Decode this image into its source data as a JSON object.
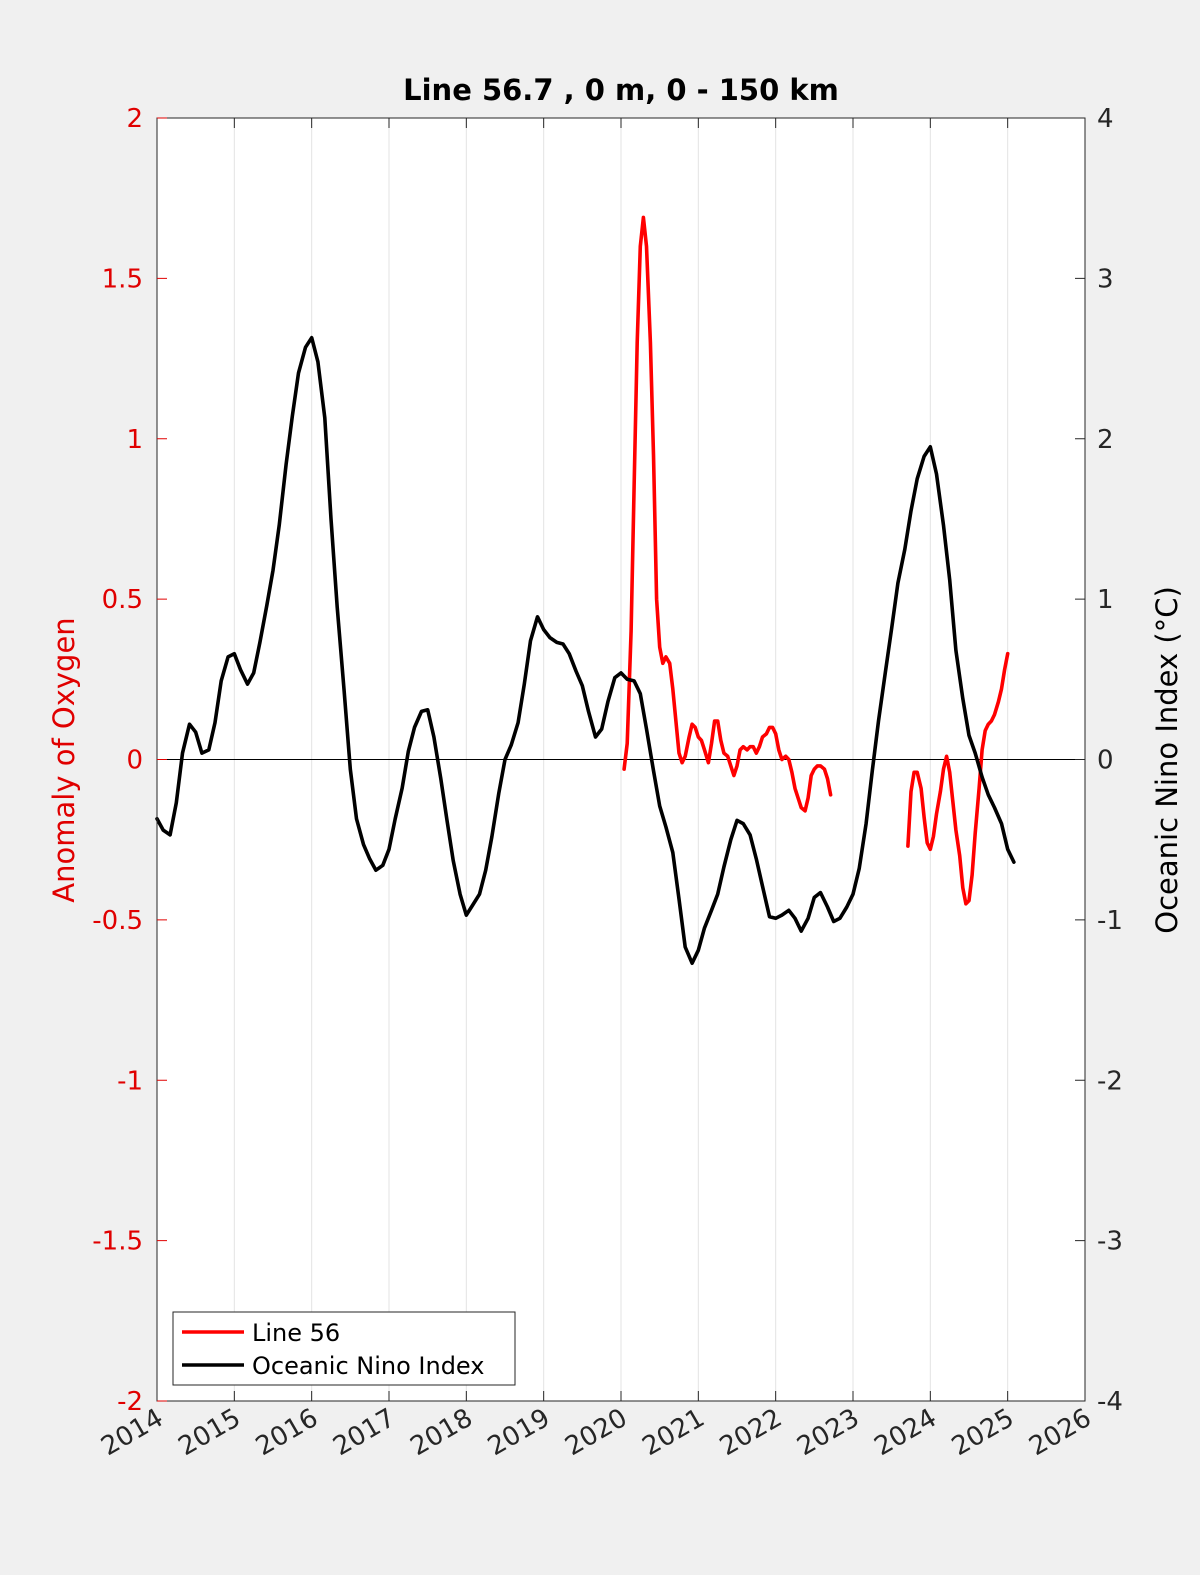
{
  "chart_data": {
    "type": "line",
    "title": "Line 56.7 , 0 m, 0 - 150 km",
    "ylabel_left": "Anomaly of Oxygen",
    "ylabel_right": "Oceanic Nino Index (°C)",
    "xlim": [
      2014,
      2026
    ],
    "ylim_left": [
      -2,
      2
    ],
    "ylim_right": [
      -4,
      4
    ],
    "xticks": [
      "2014",
      "2015",
      "2016",
      "2017",
      "2018",
      "2019",
      "2020",
      "2021",
      "2022",
      "2023",
      "2024",
      "2025",
      "2026"
    ],
    "yticks_left": [
      "-2",
      "-1.5",
      "-1",
      "-0.5",
      "0",
      "0.5",
      "1",
      "1.5",
      "2"
    ],
    "yticks_right": [
      "-4",
      "-3",
      "-2",
      "-1",
      "0",
      "1",
      "2",
      "3",
      "4"
    ],
    "grid": "vertical",
    "legend_position": "bottom-left",
    "colors": {
      "left_axis": "#e00000",
      "right_axis": "#000000",
      "background": "#f0f0f0",
      "plot": "#ffffff"
    },
    "series": [
      {
        "name": "Line 56",
        "axis": "left",
        "color": "#ff0000",
        "segments": [
          [
            [
              2020.04,
              -0.03
            ],
            [
              2020.08,
              0.05
            ],
            [
              2020.13,
              0.4
            ],
            [
              2020.17,
              0.85
            ],
            [
              2020.21,
              1.3
            ],
            [
              2020.25,
              1.6
            ],
            [
              2020.29,
              1.69
            ],
            [
              2020.33,
              1.6
            ],
            [
              2020.38,
              1.3
            ],
            [
              2020.42,
              0.95
            ],
            [
              2020.46,
              0.5
            ],
            [
              2020.5,
              0.35
            ],
            [
              2020.54,
              0.3
            ],
            [
              2020.58,
              0.32
            ],
            [
              2020.63,
              0.3
            ],
            [
              2020.67,
              0.22
            ],
            [
              2020.71,
              0.12
            ],
            [
              2020.75,
              0.02
            ],
            [
              2020.79,
              -0.01
            ],
            [
              2020.83,
              0.01
            ],
            [
              2020.88,
              0.07
            ],
            [
              2020.92,
              0.11
            ],
            [
              2020.96,
              0.1
            ],
            [
              2021.0,
              0.07
            ],
            [
              2021.04,
              0.06
            ],
            [
              2021.08,
              0.03
            ],
            [
              2021.13,
              -0.01
            ],
            [
              2021.17,
              0.05
            ],
            [
              2021.21,
              0.12
            ],
            [
              2021.25,
              0.12
            ],
            [
              2021.29,
              0.06
            ],
            [
              2021.33,
              0.02
            ],
            [
              2021.38,
              0.01
            ],
            [
              2021.42,
              -0.02
            ],
            [
              2021.46,
              -0.05
            ],
            [
              2021.5,
              -0.02
            ],
            [
              2021.54,
              0.03
            ],
            [
              2021.58,
              0.04
            ],
            [
              2021.63,
              0.03
            ],
            [
              2021.67,
              0.04
            ],
            [
              2021.71,
              0.04
            ],
            [
              2021.75,
              0.02
            ],
            [
              2021.79,
              0.04
            ],
            [
              2021.83,
              0.07
            ],
            [
              2021.88,
              0.08
            ],
            [
              2021.92,
              0.1
            ],
            [
              2021.96,
              0.1
            ],
            [
              2022.0,
              0.08
            ],
            [
              2022.04,
              0.03
            ],
            [
              2022.08,
              0.0
            ],
            [
              2022.13,
              0.01
            ],
            [
              2022.17,
              0.0
            ],
            [
              2022.21,
              -0.04
            ],
            [
              2022.25,
              -0.09
            ],
            [
              2022.29,
              -0.12
            ],
            [
              2022.33,
              -0.15
            ],
            [
              2022.38,
              -0.16
            ],
            [
              2022.42,
              -0.12
            ],
            [
              2022.46,
              -0.05
            ],
            [
              2022.5,
              -0.03
            ],
            [
              2022.54,
              -0.02
            ],
            [
              2022.58,
              -0.02
            ],
            [
              2022.63,
              -0.03
            ],
            [
              2022.67,
              -0.06
            ],
            [
              2022.71,
              -0.11
            ]
          ],
          [
            [
              2023.71,
              -0.27
            ],
            [
              2023.75,
              -0.1
            ],
            [
              2023.79,
              -0.04
            ],
            [
              2023.83,
              -0.04
            ],
            [
              2023.88,
              -0.09
            ],
            [
              2023.92,
              -0.18
            ],
            [
              2023.96,
              -0.26
            ],
            [
              2024.0,
              -0.28
            ],
            [
              2024.04,
              -0.24
            ],
            [
              2024.08,
              -0.17
            ],
            [
              2024.13,
              -0.1
            ],
            [
              2024.17,
              -0.03
            ],
            [
              2024.21,
              0.01
            ],
            [
              2024.25,
              -0.04
            ],
            [
              2024.29,
              -0.13
            ],
            [
              2024.33,
              -0.22
            ],
            [
              2024.38,
              -0.3
            ],
            [
              2024.42,
              -0.4
            ],
            [
              2024.46,
              -0.45
            ],
            [
              2024.5,
              -0.44
            ],
            [
              2024.54,
              -0.36
            ],
            [
              2024.58,
              -0.23
            ],
            [
              2024.63,
              -0.09
            ],
            [
              2024.67,
              0.03
            ],
            [
              2024.71,
              0.09
            ],
            [
              2024.75,
              0.11
            ],
            [
              2024.79,
              0.12
            ],
            [
              2024.83,
              0.14
            ],
            [
              2024.88,
              0.18
            ],
            [
              2024.92,
              0.22
            ],
            [
              2024.96,
              0.28
            ],
            [
              2025.0,
              0.33
            ]
          ]
        ]
      },
      {
        "name": "Oceanic Nino Index",
        "axis": "right",
        "color": "#000000",
        "segments": [
          [
            [
              2014.0,
              -0.37
            ],
            [
              2014.08,
              -0.44
            ],
            [
              2014.17,
              -0.47
            ],
            [
              2014.25,
              -0.27
            ],
            [
              2014.33,
              0.04
            ],
            [
              2014.42,
              0.22
            ],
            [
              2014.5,
              0.17
            ],
            [
              2014.58,
              0.04
            ],
            [
              2014.67,
              0.06
            ],
            [
              2014.75,
              0.23
            ],
            [
              2014.83,
              0.49
            ],
            [
              2014.92,
              0.64
            ],
            [
              2015.0,
              0.66
            ],
            [
              2015.08,
              0.56
            ],
            [
              2015.17,
              0.47
            ],
            [
              2015.25,
              0.54
            ],
            [
              2015.33,
              0.73
            ],
            [
              2015.42,
              0.96
            ],
            [
              2015.5,
              1.18
            ],
            [
              2015.58,
              1.46
            ],
            [
              2015.67,
              1.84
            ],
            [
              2015.75,
              2.14
            ],
            [
              2015.83,
              2.41
            ],
            [
              2015.92,
              2.57
            ],
            [
              2016.0,
              2.63
            ],
            [
              2016.08,
              2.48
            ],
            [
              2016.17,
              2.13
            ],
            [
              2016.25,
              1.5
            ],
            [
              2016.33,
              0.95
            ],
            [
              2016.42,
              0.43
            ],
            [
              2016.5,
              -0.06
            ],
            [
              2016.58,
              -0.37
            ],
            [
              2016.67,
              -0.53
            ],
            [
              2016.75,
              -0.62
            ],
            [
              2016.83,
              -0.69
            ],
            [
              2016.92,
              -0.66
            ],
            [
              2017.0,
              -0.56
            ],
            [
              2017.08,
              -0.37
            ],
            [
              2017.17,
              -0.18
            ],
            [
              2017.25,
              0.05
            ],
            [
              2017.33,
              0.2
            ],
            [
              2017.42,
              0.3
            ],
            [
              2017.5,
              0.31
            ],
            [
              2017.58,
              0.14
            ],
            [
              2017.67,
              -0.12
            ],
            [
              2017.75,
              -0.38
            ],
            [
              2017.83,
              -0.63
            ],
            [
              2017.92,
              -0.84
            ],
            [
              2018.0,
              -0.97
            ],
            [
              2018.08,
              -0.91
            ],
            [
              2018.17,
              -0.84
            ],
            [
              2018.25,
              -0.69
            ],
            [
              2018.33,
              -0.48
            ],
            [
              2018.42,
              -0.21
            ],
            [
              2018.5,
              0.0
            ],
            [
              2018.58,
              0.09
            ],
            [
              2018.67,
              0.23
            ],
            [
              2018.75,
              0.47
            ],
            [
              2018.83,
              0.74
            ],
            [
              2018.92,
              0.89
            ],
            [
              2019.0,
              0.81
            ],
            [
              2019.08,
              0.76
            ],
            [
              2019.17,
              0.73
            ],
            [
              2019.25,
              0.72
            ],
            [
              2019.33,
              0.66
            ],
            [
              2019.42,
              0.55
            ],
            [
              2019.5,
              0.46
            ],
            [
              2019.58,
              0.3
            ],
            [
              2019.67,
              0.14
            ],
            [
              2019.75,
              0.19
            ],
            [
              2019.83,
              0.36
            ],
            [
              2019.92,
              0.51
            ],
            [
              2020.0,
              0.54
            ],
            [
              2020.08,
              0.5
            ],
            [
              2020.17,
              0.49
            ],
            [
              2020.25,
              0.41
            ],
            [
              2020.33,
              0.19
            ],
            [
              2020.42,
              -0.07
            ],
            [
              2020.5,
              -0.29
            ],
            [
              2020.58,
              -0.42
            ],
            [
              2020.67,
              -0.58
            ],
            [
              2020.75,
              -0.87
            ],
            [
              2020.83,
              -1.17
            ],
            [
              2020.92,
              -1.27
            ],
            [
              2021.0,
              -1.19
            ],
            [
              2021.08,
              -1.05
            ],
            [
              2021.17,
              -0.94
            ],
            [
              2021.25,
              -0.84
            ],
            [
              2021.33,
              -0.67
            ],
            [
              2021.42,
              -0.5
            ],
            [
              2021.5,
              -0.38
            ],
            [
              2021.58,
              -0.4
            ],
            [
              2021.67,
              -0.47
            ],
            [
              2021.75,
              -0.62
            ],
            [
              2021.83,
              -0.79
            ],
            [
              2021.92,
              -0.98
            ],
            [
              2022.0,
              -0.99
            ],
            [
              2022.08,
              -0.97
            ],
            [
              2022.17,
              -0.94
            ],
            [
              2022.25,
              -0.99
            ],
            [
              2022.33,
              -1.07
            ],
            [
              2022.42,
              -0.99
            ],
            [
              2022.5,
              -0.86
            ],
            [
              2022.58,
              -0.83
            ],
            [
              2022.67,
              -0.92
            ],
            [
              2022.75,
              -1.01
            ],
            [
              2022.83,
              -0.99
            ],
            [
              2022.92,
              -0.92
            ],
            [
              2023.0,
              -0.84
            ],
            [
              2023.08,
              -0.68
            ],
            [
              2023.17,
              -0.4
            ],
            [
              2023.25,
              -0.07
            ],
            [
              2023.33,
              0.24
            ],
            [
              2023.42,
              0.55
            ],
            [
              2023.5,
              0.82
            ],
            [
              2023.58,
              1.1
            ],
            [
              2023.67,
              1.31
            ],
            [
              2023.75,
              1.55
            ],
            [
              2023.83,
              1.75
            ],
            [
              2023.92,
              1.89
            ],
            [
              2024.0,
              1.95
            ],
            [
              2024.08,
              1.78
            ],
            [
              2024.17,
              1.46
            ],
            [
              2024.25,
              1.12
            ],
            [
              2024.33,
              0.68
            ],
            [
              2024.42,
              0.38
            ],
            [
              2024.5,
              0.15
            ],
            [
              2024.58,
              0.04
            ],
            [
              2024.67,
              -0.11
            ],
            [
              2024.75,
              -0.22
            ],
            [
              2024.83,
              -0.3
            ],
            [
              2024.92,
              -0.4
            ],
            [
              2025.0,
              -0.56
            ],
            [
              2025.08,
              -0.64
            ]
          ]
        ]
      }
    ]
  }
}
